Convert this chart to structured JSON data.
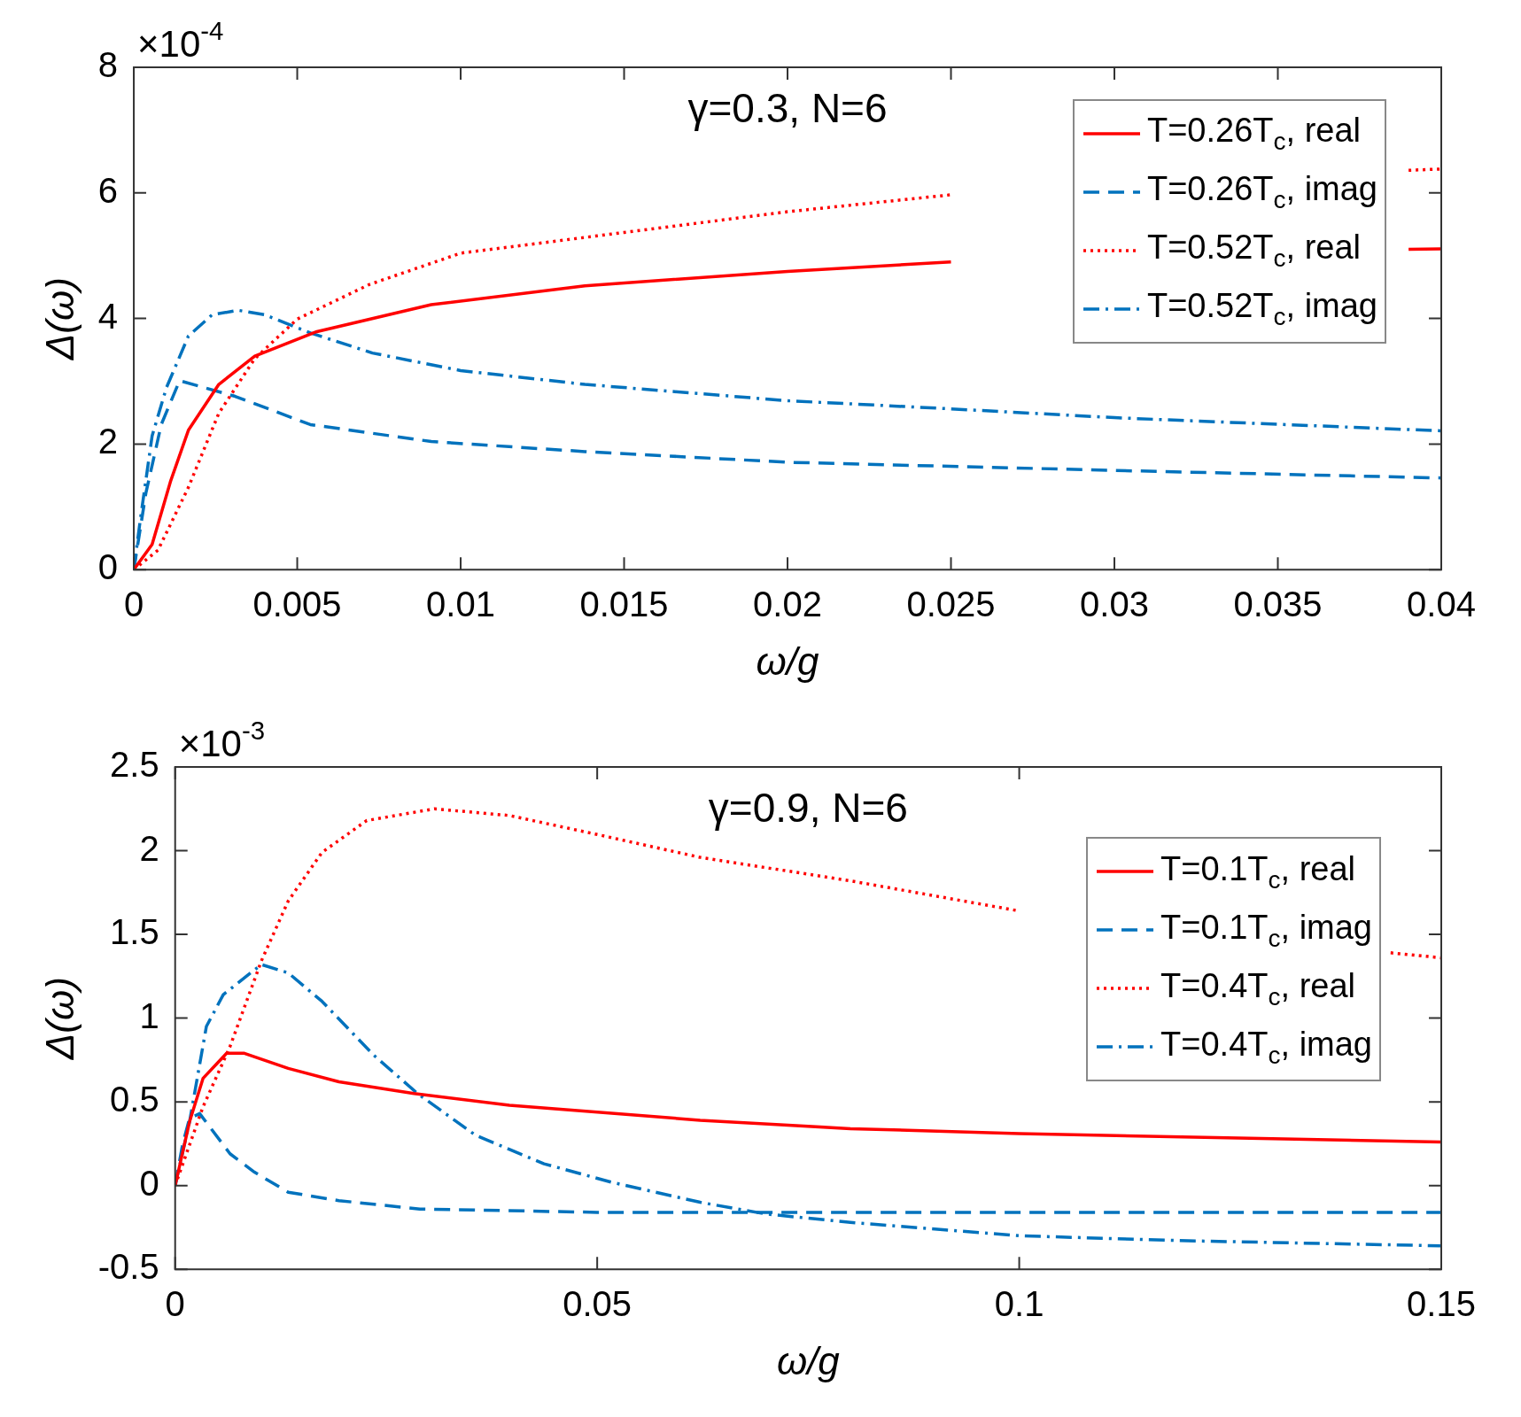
{
  "chart_data": [
    {
      "type": "line",
      "title": "γ=0.3, N=6",
      "xlabel": "ω/g",
      "ylabel": "Δ(ω)",
      "annotations": [
        "×10$^{-4}$"
      ],
      "xlim": [
        0,
        0.04
      ],
      "xticks": [
        0,
        0.005,
        0.01,
        0.015,
        0.02,
        0.025,
        0.03,
        0.035,
        0.04
      ],
      "ylim": [
        0,
        8
      ],
      "yticks": [
        0,
        2,
        4,
        6,
        8
      ],
      "grid": false,
      "legend": "top right",
      "series": [
        {
          "name": "T=0.26T$_{c}$, real",
          "color": "#ff0000",
          "line_style": "solid",
          "x": [
            0,
            0.00056,
            0.00112,
            0.00167,
            0.0026,
            0.0037,
            0.0056,
            0.0091,
            0.0138,
            0.02,
            0.025,
            0.032,
            0.039,
            0.04
          ],
          "values": [
            0,
            0.4,
            1.4,
            2.22,
            2.95,
            3.4,
            3.79,
            4.22,
            4.52,
            4.75,
            4.9,
            null,
            5.1,
            5.11
          ]
        },
        {
          "name": "T=0.26T$_{c}$, imag",
          "color": "#0072bd",
          "line_style": "dashed",
          "x": [
            0,
            0.00037,
            0.00084,
            0.0014,
            0.0031,
            0.0054,
            0.0091,
            0.0138,
            0.02,
            0.03,
            0.04
          ],
          "values": [
            0,
            1.22,
            2.31,
            3.01,
            2.76,
            2.31,
            2.04,
            1.88,
            1.71,
            1.58,
            1.46
          ]
        },
        {
          "name": "T=0.52T$_{c}$, real",
          "color": "#ff0000",
          "line_style": "dotted",
          "x": [
            0,
            0.00074,
            0.00167,
            0.0026,
            0.0037,
            0.005,
            0.0072,
            0.01,
            0.015,
            0.02,
            0.025,
            0.032,
            0.039,
            0.04
          ],
          "values": [
            0,
            0.31,
            1.31,
            2.49,
            3.36,
            3.99,
            4.54,
            5.04,
            5.37,
            5.7,
            5.97,
            null,
            6.36,
            6.38
          ]
        },
        {
          "name": "T=0.52T$_{c}$, imag",
          "color": "#0072bd",
          "line_style": "dashdot",
          "x": [
            0,
            0.00019,
            0.00056,
            0.001,
            0.00167,
            0.0024,
            0.0032,
            0.004,
            0.0054,
            0.0073,
            0.01,
            0.0138,
            0.02,
            0.025,
            0.03,
            0.04
          ],
          "values": [
            0,
            0.76,
            2.13,
            2.9,
            3.72,
            4.06,
            4.13,
            4.06,
            3.77,
            3.45,
            3.17,
            2.95,
            2.69,
            2.56,
            2.42,
            2.21
          ]
        }
      ]
    },
    {
      "type": "line",
      "title": "γ=0.9, N=6",
      "xlabel": "ω/g",
      "ylabel": "Δ(ω)",
      "annotations": [
        "×10$^{-3}$"
      ],
      "xlim": [
        0,
        0.15
      ],
      "xticks": [
        0,
        0.05,
        0.1,
        0.15
      ],
      "ylim": [
        -0.5,
        2.5
      ],
      "yticks": [
        -0.5,
        0,
        0.5,
        1,
        1.5,
        2,
        2.5
      ],
      "grid": false,
      "legend": "right",
      "series": [
        {
          "name": "T=0.1T$_{c}$, real",
          "color": "#ff0000",
          "line_style": "solid",
          "x": [
            0,
            0.0017,
            0.0033,
            0.0061,
            0.0082,
            0.0134,
            0.0194,
            0.0283,
            0.0396,
            0.0622,
            0.08,
            0.1,
            0.15
          ],
          "values": [
            0,
            0.38,
            0.64,
            0.79,
            0.79,
            0.7,
            0.62,
            0.55,
            0.48,
            0.39,
            0.34,
            0.31,
            0.26
          ]
        },
        {
          "name": "T=0.1T$_{c}$, imag",
          "color": "#0072bd",
          "line_style": "dashed",
          "x": [
            0,
            0.0009,
            0.0017,
            0.0029,
            0.0065,
            0.0094,
            0.0134,
            0.0194,
            0.029,
            0.05,
            0.1,
            0.15
          ],
          "values": [
            0,
            0.25,
            0.4,
            0.43,
            0.19,
            0.08,
            -0.04,
            -0.09,
            -0.14,
            -0.16,
            -0.16,
            -0.16
          ]
        },
        {
          "name": "T=0.4T$_{c}$, real",
          "color": "#ff0000",
          "line_style": "dotted",
          "x": [
            0,
            0.0033,
            0.0065,
            0.0102,
            0.0134,
            0.0174,
            0.0227,
            0.0307,
            0.0396,
            0.0497,
            0.0622,
            0.08,
            0.1,
            0.12,
            0.144,
            0.15
          ],
          "values": [
            0,
            0.47,
            0.83,
            1.34,
            1.7,
            1.99,
            2.18,
            2.25,
            2.21,
            2.1,
            1.96,
            1.82,
            1.64,
            null,
            1.39,
            1.36
          ]
        },
        {
          "name": "T=0.4T$_{c}$, imag",
          "color": "#0072bd",
          "line_style": "dashdot",
          "x": [
            0,
            0.0017,
            0.0037,
            0.0057,
            0.0102,
            0.0134,
            0.0174,
            0.0235,
            0.0287,
            0.0356,
            0.0437,
            0.0517,
            0.0622,
            0.07,
            0.08,
            0.1,
            0.12,
            0.15
          ],
          "values": [
            0,
            0.38,
            0.95,
            1.14,
            1.32,
            1.27,
            1.1,
            0.78,
            0.55,
            0.3,
            0.13,
            0.02,
            -0.1,
            -0.17,
            -0.22,
            -0.3,
            -0.33,
            -0.36
          ]
        }
      ]
    }
  ]
}
